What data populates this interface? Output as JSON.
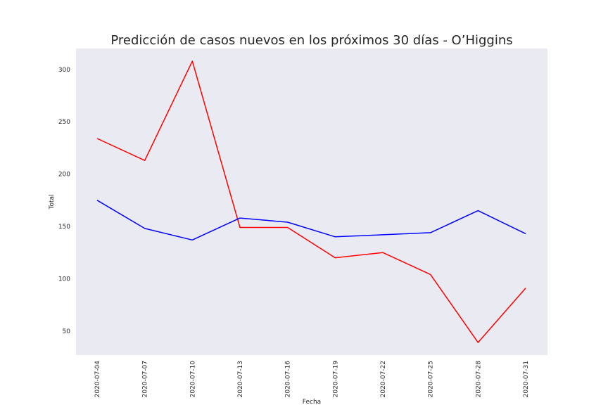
{
  "chart_data": {
    "type": "line",
    "title": "Predicción de casos nuevos en los próximos 30 días - O’Higgins",
    "xlabel": "Fecha",
    "ylabel": "Total",
    "x": [
      "2020-07-04",
      "2020-07-07",
      "2020-07-10",
      "2020-07-13",
      "2020-07-16",
      "2020-07-19",
      "2020-07-22",
      "2020-07-25",
      "2020-07-28",
      "2020-07-31"
    ],
    "xticks": [
      "2020-07-04",
      "2020-07-07",
      "2020-07-10",
      "2020-07-13",
      "2020-07-16",
      "2020-07-19",
      "2020-07-22",
      "2020-07-25",
      "2020-07-28",
      "2020-07-31"
    ],
    "yticks": [
      50,
      100,
      150,
      200,
      250,
      300
    ],
    "ylim": [
      27,
      320
    ],
    "grid": false,
    "background": "#eaeaf2",
    "series": [
      {
        "color": "#ff0000",
        "values": [
          234,
          213,
          308,
          149,
          149,
          120,
          125,
          104,
          39,
          91
        ]
      },
      {
        "color": "#0000ff",
        "values": [
          175,
          148,
          137,
          158,
          154,
          140,
          142,
          144,
          165,
          143
        ]
      }
    ]
  }
}
